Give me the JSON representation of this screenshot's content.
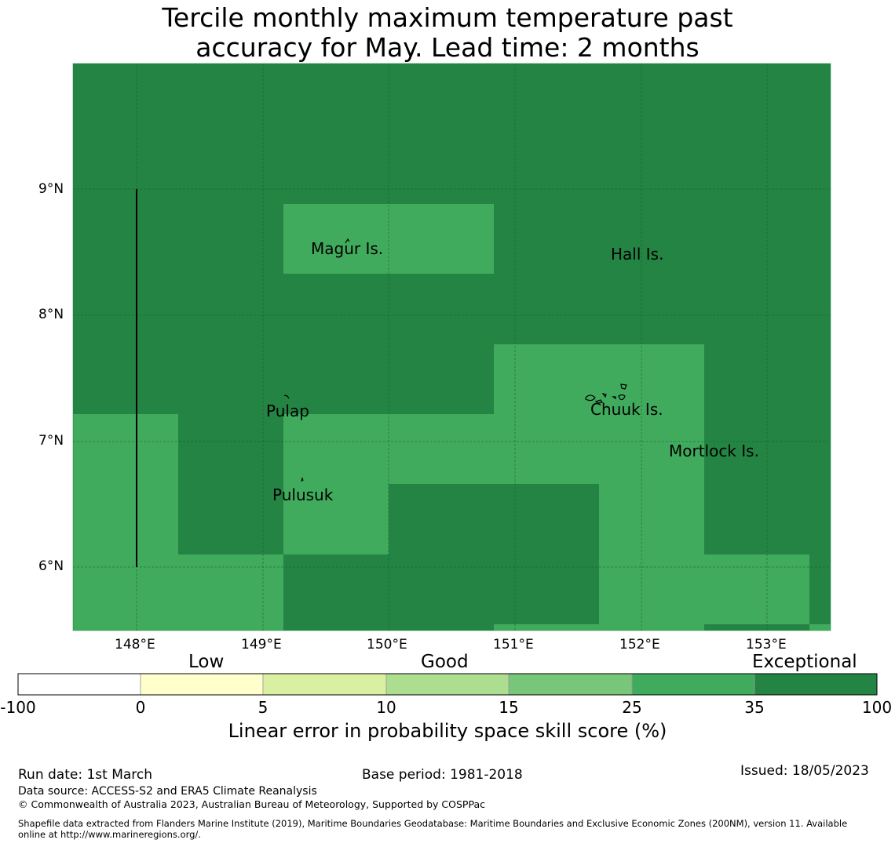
{
  "title": {
    "line1": "Tercile monthly maximum temperature past",
    "line2": "accuracy for May. Lead time: 2 months"
  },
  "map": {
    "lon_labels": [
      "148°E",
      "149°E",
      "150°E",
      "151°E",
      "152°E",
      "153°E"
    ],
    "lat_labels": [
      "9°N",
      "8°N",
      "7°N",
      "6°N"
    ],
    "places": [
      {
        "name": "Magur Is."
      },
      {
        "name": "Hall Is."
      },
      {
        "name": "Pulap"
      },
      {
        "name": "Chuuk Is."
      },
      {
        "name": "Mortlock Is."
      },
      {
        "name": "Pulusuk"
      }
    ],
    "colors": {
      "exceptional": "#238443",
      "high": "#41ab5d"
    }
  },
  "colorbar": {
    "categories": [
      "Low",
      "Good",
      "Exceptional"
    ],
    "ticks": [
      "-100",
      "0",
      "5",
      "10",
      "15",
      "25",
      "35",
      "100"
    ],
    "colors": [
      "#ffffff",
      "#ffffcc",
      "#d9f0a3",
      "#addd8e",
      "#78c679",
      "#41ab5d",
      "#238443"
    ],
    "label": "Linear error in probability space skill score (%)"
  },
  "footer": {
    "run_date": "Run date: 1st March",
    "base_period": "Base period: 1981-2018",
    "issued": "Issued: 18/05/2023",
    "data_source": "Data source: ACCESS-S2 and ERA5 Climate Reanalysis",
    "copyright": "© Commonwealth of Australia 2023, Australian Bureau of Meteorology, Supported by COSPPac",
    "shapefile_line1": "Shapefile data extracted from Flanders Marine Institute (2019), Maritime Boundaries Geodatabase: Maritime Boundaries and Exclusive Economic Zones (200NM), version 11. Available",
    "shapefile_line2": "online at http://www.marineregions.org/."
  }
}
